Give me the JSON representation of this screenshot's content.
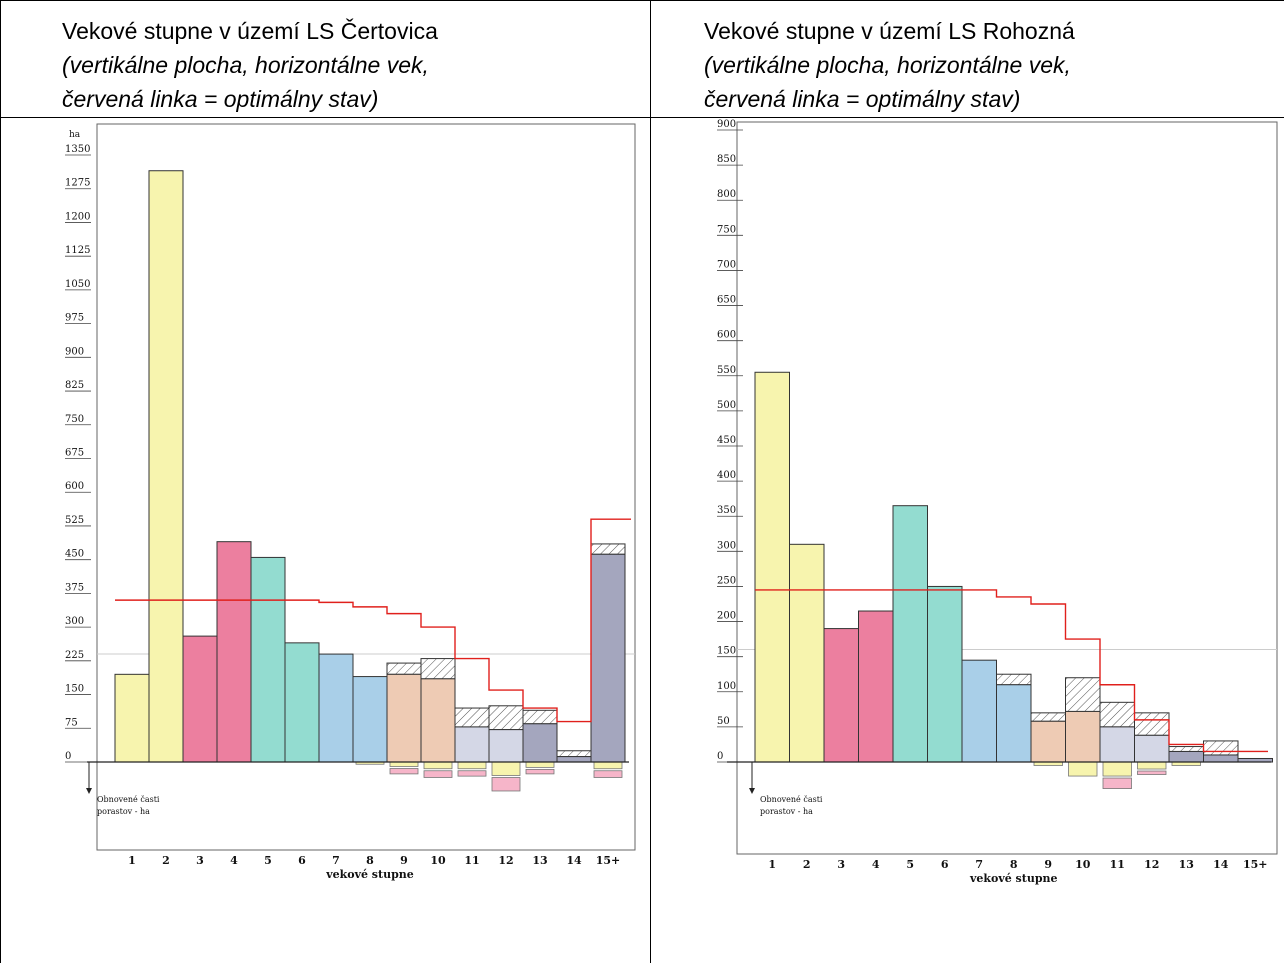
{
  "headers": [
    {
      "title": "Vekové stupne v území LS Čertovica",
      "line2": "(vertikálne plocha, horizontálne vek,",
      "line3": "červená linka = optimálny stav)"
    },
    {
      "title": "Vekové stupne v území LS Rohozná",
      "line2": "(vertikálne plocha, horizontálne vek,",
      "line3": "červená linka = optimálny stav)"
    }
  ],
  "colors": {
    "optimum_line": "#e0201c",
    "bar_colors": [
      "#f7f4ae",
      "#f7f4ae",
      "#ec7f9f",
      "#ec7f9f",
      "#93dcd0",
      "#93dcd0",
      "#a9cfe8",
      "#a9cfe8",
      "#eecbb4",
      "#eecbb4",
      "#d4d7e6",
      "#d4d7e6",
      "#a4a6be",
      "#a4a6be",
      "#a4a6be"
    ],
    "below_yellow": "#f7f4ae",
    "below_pink": "#f6b5c9"
  },
  "chart_data": [
    {
      "type": "bar",
      "unit_label": "ha",
      "xlabel": "vekové stupne",
      "below_label_line1": "Obnovené časti",
      "below_label_line2": "porastov - ha",
      "ylim": [
        0,
        1350
      ],
      "yticks": [
        0,
        75,
        150,
        225,
        300,
        375,
        450,
        525,
        600,
        675,
        750,
        825,
        900,
        975,
        1050,
        1125,
        1200,
        1275,
        1350
      ],
      "categories": [
        "1",
        "2",
        "3",
        "4",
        "5",
        "6",
        "7",
        "8",
        "9",
        "10",
        "11",
        "12",
        "13",
        "14",
        "15+"
      ],
      "values": [
        195,
        1315,
        280,
        490,
        455,
        265,
        240,
        190,
        220,
        230,
        120,
        125,
        115,
        25,
        485
      ],
      "solid_values": [
        195,
        1315,
        280,
        490,
        455,
        265,
        240,
        190,
        195,
        185,
        78,
        72,
        85,
        12,
        462
      ],
      "below": [
        [
          0,
          0
        ],
        [
          0,
          0
        ],
        [
          0,
          0
        ],
        [
          0,
          0
        ],
        [
          0,
          0
        ],
        [
          0,
          0
        ],
        [
          0,
          0
        ],
        [
          5,
          0
        ],
        [
          10,
          12
        ],
        [
          15,
          15
        ],
        [
          15,
          12
        ],
        [
          30,
          30
        ],
        [
          12,
          10
        ],
        [
          0,
          0
        ],
        [
          15,
          15
        ]
      ],
      "optimum": [
        360,
        360,
        360,
        360,
        360,
        360,
        355,
        345,
        330,
        300,
        230,
        160,
        120,
        90,
        540
      ]
    },
    {
      "type": "bar",
      "unit_label": "",
      "xlabel": "vekové stupne",
      "below_label_line1": "Obnovené časti",
      "below_label_line2": "porastov - ha",
      "ylim": [
        0,
        900
      ],
      "yticks": [
        0,
        50,
        100,
        150,
        200,
        250,
        300,
        350,
        400,
        450,
        500,
        550,
        600,
        650,
        700,
        750,
        800,
        850,
        900
      ],
      "categories": [
        "1",
        "2",
        "3",
        "4",
        "5",
        "6",
        "7",
        "8",
        "9",
        "10",
        "11",
        "12",
        "13",
        "14",
        "15+"
      ],
      "values": [
        555,
        310,
        190,
        215,
        365,
        250,
        145,
        125,
        70,
        120,
        85,
        70,
        22,
        30,
        5
      ],
      "solid_values": [
        555,
        310,
        190,
        215,
        365,
        250,
        145,
        110,
        58,
        72,
        50,
        38,
        15,
        10,
        5
      ],
      "below": [
        [
          0,
          0
        ],
        [
          0,
          0
        ],
        [
          0,
          0
        ],
        [
          0,
          0
        ],
        [
          0,
          0
        ],
        [
          0,
          0
        ],
        [
          0,
          0
        ],
        [
          0,
          0
        ],
        [
          5,
          0
        ],
        [
          20,
          0
        ],
        [
          20,
          15
        ],
        [
          10,
          5
        ],
        [
          5,
          0
        ],
        [
          0,
          0
        ],
        [
          0,
          0
        ]
      ],
      "optimum": [
        245,
        245,
        245,
        245,
        245,
        245,
        245,
        235,
        225,
        175,
        110,
        60,
        25,
        15,
        15
      ]
    }
  ]
}
